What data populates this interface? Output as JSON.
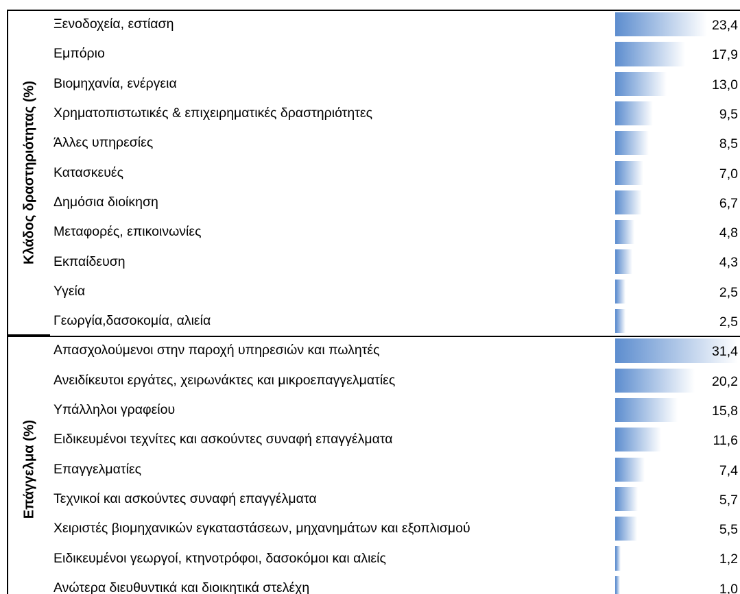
{
  "sections": [
    {
      "title": "Κλάδος δραστηριότητας (%)",
      "rows": [
        {
          "label": "Ξενοδοχεία, εστίαση",
          "value": 23.4,
          "value_label": "23,4"
        },
        {
          "label": "Εμπόριο",
          "value": 17.9,
          "value_label": "17,9"
        },
        {
          "label": "Βιομηχανία, ενέργεια",
          "value": 13.0,
          "value_label": "13,0"
        },
        {
          "label": "Χρηματοπιστωτικές & επιχειρηματικές δραστηριότητες",
          "value": 9.5,
          "value_label": "9,5"
        },
        {
          "label": "Άλλες υπηρεσίες",
          "value": 8.5,
          "value_label": "8,5"
        },
        {
          "label": "Κατασκευές",
          "value": 7.0,
          "value_label": "7,0"
        },
        {
          "label": "Δημόσια διοίκηση",
          "value": 6.7,
          "value_label": "6,7"
        },
        {
          "label": "Μεταφορές, επικοινωνίες",
          "value": 4.8,
          "value_label": "4,8"
        },
        {
          "label": "Εκπαίδευση",
          "value": 4.3,
          "value_label": "4,3"
        },
        {
          "label": "Υγεία",
          "value": 2.5,
          "value_label": "2,5"
        },
        {
          "label": "Γεωργία,δασοκομία, αλιεία",
          "value": 2.5,
          "value_label": "2,5"
        }
      ]
    },
    {
      "title": "Επάγγελμα (%)",
      "rows": [
        {
          "label": "Απασχολούμενοι στην παροχή υπηρεσιών και πωλητές",
          "value": 31.4,
          "value_label": "31,4"
        },
        {
          "label": "Ανειδίκευτοι εργάτες, χειρωνάκτες και μικροεπαγγελματίες",
          "value": 20.2,
          "value_label": "20,2"
        },
        {
          "label": "Υπάλληλοι γραφείου",
          "value": 15.8,
          "value_label": "15,8"
        },
        {
          "label": "Ειδικευμένοι τεχνίτες και ασκούντες συναφή επαγγέλματα",
          "value": 11.6,
          "value_label": "11,6"
        },
        {
          "label": "Επαγγελματίες",
          "value": 7.4,
          "value_label": "7,4"
        },
        {
          "label": "Τεχνικοί και ασκούντες συναφή επαγγέλματα",
          "value": 5.7,
          "value_label": "5,7"
        },
        {
          "label": "Χειριστές βιομηχανικών εγκαταστάσεων, μηχανημάτων και εξοπλισμού",
          "value": 5.5,
          "value_label": "5,5"
        },
        {
          "label": "Ειδικευμένοι γεωργοί, κτηνοτρόφοι, δασοκόμοι και αλιείς",
          "value": 1.2,
          "value_label": "1,2"
        },
        {
          "label": "Ανώτερα διευθυντικά και διοικητικά στελέχη",
          "value": 1.0,
          "value_label": "1,0"
        }
      ]
    }
  ]
}
